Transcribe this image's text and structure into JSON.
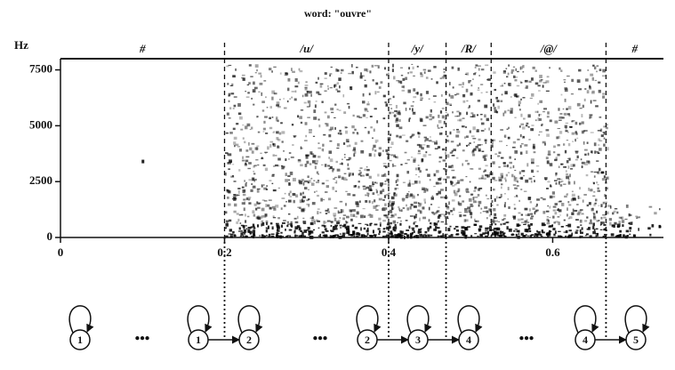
{
  "chart_data": {
    "type": "spectrogram",
    "title": "word: \"ouvre\"",
    "ylabel": "Hz",
    "xlim": [
      0,
      0.735
    ],
    "ylim": [
      0,
      8000
    ],
    "xticks": [
      0,
      0.2,
      0.4,
      0.6
    ],
    "yticks": [
      0,
      2500,
      5000,
      7500
    ],
    "segments": [
      "#",
      "/u/",
      "/y/",
      "/R/",
      "/@/",
      "#"
    ],
    "boundaries": [
      0.2,
      0.4,
      0.47,
      0.525,
      0.665
    ]
  },
  "diagram": {
    "groups": [
      [
        "1"
      ],
      [
        "1",
        "2"
      ],
      [
        "2",
        "3",
        "4"
      ],
      [
        "4",
        "5"
      ]
    ],
    "ellipsis": "•••"
  }
}
